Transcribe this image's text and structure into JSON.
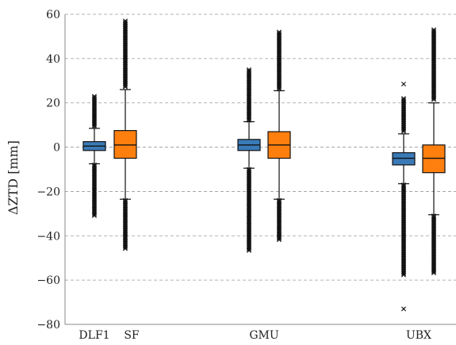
{
  "chart_data": {
    "type": "box",
    "title": "",
    "xlabel": "",
    "ylabel": "ΔZTD [mm]",
    "ylim": [
      -80,
      60
    ],
    "yticks": [
      -80,
      -60,
      -40,
      -20,
      0,
      20,
      40,
      60
    ],
    "grid": "horizontal dashed",
    "group_labels": [
      "DLF1",
      "SF",
      "GMU",
      "UBX"
    ],
    "series": [
      {
        "name": "",
        "color": "#3a7ab7",
        "boxes": [
          {
            "group": "DLF1",
            "q1": -1.5,
            "median": 0.5,
            "q3": 2.5,
            "whisker_low": -7.5,
            "whisker_high": 8.5,
            "outlier_ranges": [
              [
                -31,
                -8
              ],
              [
                9,
                23
              ]
            ]
          },
          {
            "group": "GMU",
            "q1": -1.5,
            "median": 1.0,
            "q3": 3.5,
            "whisker_low": -9.5,
            "whisker_high": 11.5,
            "outlier_ranges": [
              [
                -47,
                -10
              ],
              [
                12,
                35
              ]
            ]
          },
          {
            "group": "UBX",
            "q1": -8.0,
            "median": -5.0,
            "q3": -2.5,
            "whisker_low": -16.5,
            "whisker_high": 6.0,
            "outlier_ranges": [
              [
                -58,
                -17
              ],
              [
                7,
                22
              ]
            ],
            "extra_outliers": [
              -73,
              28.5
            ]
          }
        ]
      },
      {
        "name": "",
        "color": "#ff7f0e",
        "boxes": [
          {
            "group": "DLF1",
            "q1": -5.0,
            "median": 1.0,
            "q3": 7.5,
            "whisker_low": -23.5,
            "whisker_high": 26.0,
            "outlier_ranges": [
              [
                -46,
                -24
              ],
              [
                27,
                57
              ]
            ]
          },
          {
            "group": "GMU",
            "q1": -5.0,
            "median": 1.0,
            "q3": 7.0,
            "whisker_low": -23.5,
            "whisker_high": 25.5,
            "outlier_ranges": [
              [
                -42,
                -24
              ],
              [
                26,
                52
              ]
            ]
          },
          {
            "group": "UBX",
            "q1": -11.5,
            "median": -5.0,
            "q3": 1.0,
            "whisker_low": -30.5,
            "whisker_high": 20.0,
            "outlier_ranges": [
              [
                -57,
                -31
              ],
              [
                21,
                53
              ]
            ]
          }
        ]
      }
    ]
  }
}
